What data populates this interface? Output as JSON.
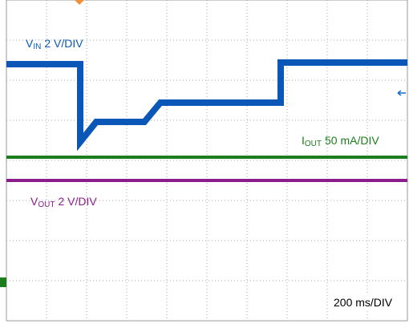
{
  "chart_data": {
    "type": "line",
    "xlim": [
      0,
      10
    ],
    "ylim": [
      0,
      8
    ],
    "xticks": [
      0,
      1,
      2,
      3,
      4,
      5,
      6,
      7,
      8,
      9,
      10
    ],
    "yticks": [
      0,
      1,
      2,
      3,
      4,
      5,
      6,
      7,
      8
    ],
    "grid": true,
    "series": [
      {
        "name": {
          "symbol": "V",
          "subscript": "IN",
          "scale": "2 V/DIV"
        },
        "color": "#0a57b8",
        "x": [
          0,
          1.84,
          1.84,
          2.24,
          3.44,
          3.84,
          6.84,
          6.84,
          10
        ],
        "values": [
          6.4,
          6.4,
          4.46,
          4.96,
          4.96,
          5.44,
          5.44,
          6.44,
          6.44
        ]
      },
      {
        "name": {
          "symbol": "I",
          "subscript": "OUT",
          "scale": "50 mA/DIV"
        },
        "color": "#1b7d1b",
        "x": [
          0,
          10
        ],
        "values": [
          4.08,
          4.08
        ]
      },
      {
        "name": {
          "symbol": "V",
          "subscript": "OUT",
          "scale": "2 V/DIV"
        },
        "color": "#8b1c8b",
        "x": [
          0,
          10
        ],
        "values": [
          3.5,
          3.5
        ]
      }
    ],
    "timebase": "200 ms/DIV"
  }
}
